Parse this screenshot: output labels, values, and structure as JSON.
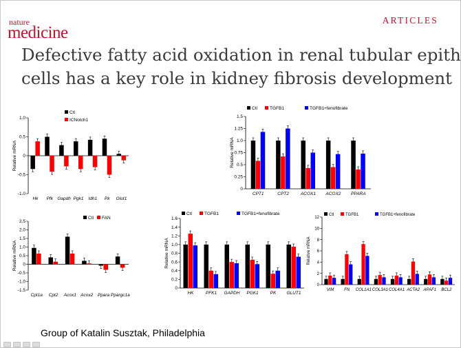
{
  "header": {
    "brand_line1": "nature",
    "brand_line2": "medicine",
    "section": "ARTICLES"
  },
  "title": {
    "line1": "Defective fatty acid oxidation in renal tubular epithelial",
    "line2": "cells has a key role in kidney fibrosis development"
  },
  "caption": "Group of Katalin Susztak, Philadelphia",
  "colors": {
    "brand_red": "#c8102e",
    "ctl": "#000000",
    "treat": "#ff0000",
    "feno": "#0000ff"
  },
  "chart_data": [
    {
      "id": "p1",
      "type": "bar",
      "categories": [
        "Hk",
        "Pfk",
        "Gapdh",
        "Pgk1",
        "Idh1",
        "Pk",
        "Glut1"
      ],
      "series": [
        {
          "name": "Ctl",
          "color": "#000000",
          "values": [
            -0.35,
            0.5,
            0.28,
            0.38,
            0.42,
            0.45,
            0.05
          ]
        },
        {
          "name": "ICNotch1",
          "color": "#ff0000",
          "values": [
            0.38,
            -0.42,
            -0.28,
            -0.35,
            -0.3,
            -0.5,
            -0.12
          ]
        }
      ],
      "ylabel": "Relative mRNA",
      "ylim": [
        -1.0,
        1.0
      ],
      "yticks": [
        "1.0",
        "0.5",
        "0",
        "-0.5",
        "-1.0"
      ],
      "legend_position": "top"
    },
    {
      "id": "p2",
      "type": "bar",
      "categories": [
        "CPT1",
        "CPT2",
        "ACOX1",
        "ACOX2",
        "PPARA"
      ],
      "series": [
        {
          "name": "Ctl",
          "color": "#000000",
          "values": [
            1.0,
            1.0,
            1.0,
            1.0,
            1.0
          ]
        },
        {
          "name": "TGFB1",
          "color": "#ff0000",
          "values": [
            0.58,
            0.67,
            0.43,
            0.45,
            0.4
          ]
        },
        {
          "name": "TGFB1+fenofibrate",
          "color": "#0000ff",
          "values": [
            1.18,
            1.25,
            0.75,
            0.72,
            0.73
          ]
        }
      ],
      "ylabel": "Relative mRNA",
      "ylim": [
        0,
        1.5
      ],
      "yticks": [
        "1.5",
        "1.25",
        "1.0",
        "0.75",
        "0.5",
        "0.25",
        "0"
      ],
      "legend_position": "top"
    },
    {
      "id": "p3",
      "type": "bar",
      "categories": [
        "Cpt1a",
        "Cpt2",
        "Acox1",
        "Acox2",
        "Ppara",
        "Ppargc1a"
      ],
      "series": [
        {
          "name": "Ctl",
          "color": "#000000",
          "values": [
            0.95,
            0.4,
            1.6,
            0.2,
            -0.08,
            0.45
          ]
        },
        {
          "name": "FAN",
          "color": "#ff0000",
          "values": [
            0.62,
            0.15,
            0.62,
            0.05,
            -0.32,
            -0.2
          ]
        }
      ],
      "ylabel": "Relative mRNA",
      "ylim": [
        -1.5,
        2.5
      ],
      "yticks": [
        "2.5",
        "2.0",
        "1.5",
        "1.0",
        "0.5",
        "0",
        "-0.5",
        "-1.0",
        "-1.5"
      ],
      "legend_position": "top-right"
    },
    {
      "id": "p4",
      "type": "bar",
      "categories": [
        "HK",
        "PFK1",
        "GAPDH",
        "PGK1",
        "PK",
        "GLUT1"
      ],
      "series": [
        {
          "name": "Ctl",
          "color": "#000000",
          "values": [
            1.0,
            1.0,
            1.0,
            1.0,
            1.0,
            1.0
          ]
        },
        {
          "name": "TGFB1",
          "color": "#ff0000",
          "values": [
            1.25,
            0.4,
            0.6,
            0.65,
            0.33,
            0.95
          ]
        },
        {
          "name": "TGFB1+fenofibrate",
          "color": "#0000ff",
          "values": [
            0.98,
            0.32,
            0.57,
            0.55,
            0.4,
            0.72
          ]
        }
      ],
      "ylabel": "Relative mRNA",
      "ylim": [
        0,
        1.6
      ],
      "yticks": [
        "1.6",
        "1.4",
        "1.2",
        "1.0",
        "0.8",
        "0.6",
        "0.4",
        "0.2",
        "0"
      ],
      "legend_position": "top"
    },
    {
      "id": "p5",
      "type": "bar",
      "categories": [
        "VIM",
        "FN",
        "COL1A1",
        "COL3A1",
        "COL4A1",
        "ACTA2",
        "APAF1",
        "BCL2"
      ],
      "series": [
        {
          "name": "Ctl",
          "color": "#000000",
          "values": [
            1.0,
            1.0,
            1.0,
            1.0,
            1.0,
            1.0,
            1.0,
            1.0
          ]
        },
        {
          "name": "TGFB1",
          "color": "#ff0000",
          "values": [
            1.6,
            5.4,
            7.2,
            1.7,
            1.6,
            4.1,
            1.8,
            0.7
          ]
        },
        {
          "name": "TGFB1+fenofibrate",
          "color": "#0000ff",
          "values": [
            1.2,
            3.6,
            5.1,
            1.3,
            1.3,
            1.9,
            1.3,
            1.2
          ]
        }
      ],
      "ylabel": "Relative mRNA",
      "ylim": [
        0,
        12
      ],
      "yticks": [
        "12",
        "10",
        "8",
        "6",
        "4",
        "2",
        "0"
      ],
      "legend_position": "top"
    }
  ]
}
